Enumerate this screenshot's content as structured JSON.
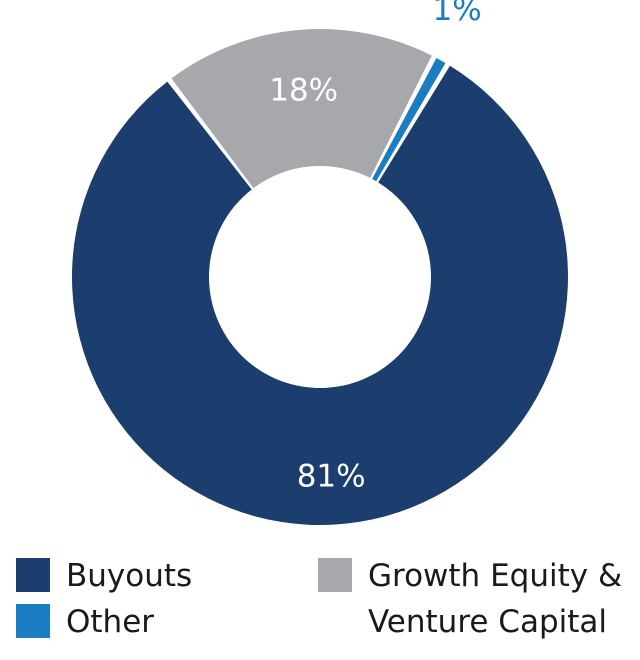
{
  "chart_data": {
    "type": "pie",
    "donut": true,
    "slices": [
      {
        "name": "Buyouts",
        "value": 81,
        "label": "81%",
        "color": "#1b3e6f",
        "label_color": "#ffffff"
      },
      {
        "name": "Growth Equity & Venture Capital",
        "value": 18,
        "label": "18%",
        "color": "#a7a8ac",
        "label_color": "#ffffff"
      },
      {
        "name": "Other",
        "value": 1,
        "label": "1%",
        "color": "#1a7cc1",
        "label_color": "#1a7cc1"
      }
    ],
    "legend": {
      "placement": "bottom",
      "items": [
        {
          "label": "Buyouts",
          "color": "#1b3e6f"
        },
        {
          "label": "Other",
          "color": "#1a7cc1"
        },
        {
          "label": "Growth Equity &\nVenture Capital",
          "color": "#a7a8ac"
        }
      ]
    }
  }
}
